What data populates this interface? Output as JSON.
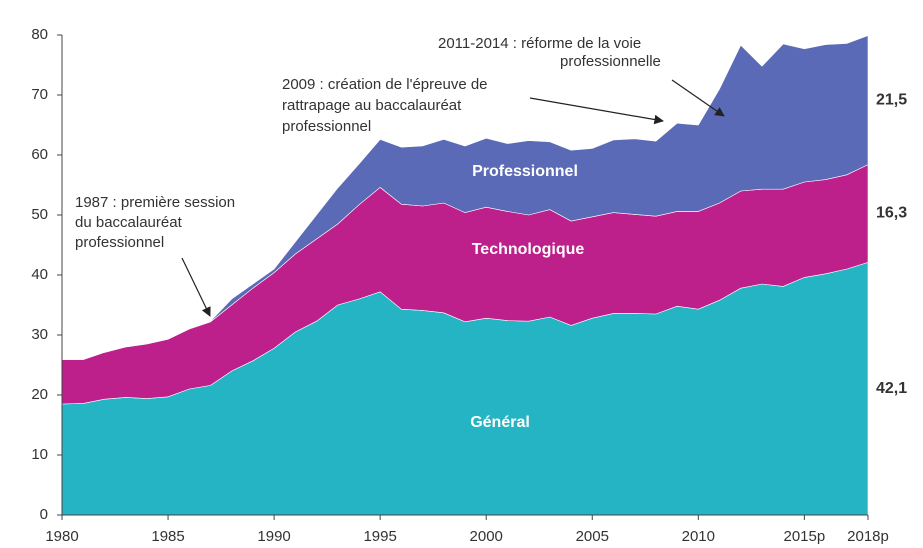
{
  "chart_data": {
    "type": "stacked_area",
    "x": [
      1980,
      1981,
      1982,
      1983,
      1984,
      1985,
      1986,
      1987,
      1988,
      1989,
      1990,
      1991,
      1992,
      1993,
      1994,
      1995,
      1996,
      1997,
      1998,
      1999,
      2000,
      2001,
      2002,
      2003,
      2004,
      2005,
      2006,
      2007,
      2008,
      2009,
      2010,
      2011,
      2012,
      2013,
      2014,
      2015,
      2016,
      2017,
      2018
    ],
    "xlim": [
      1980,
      2018
    ],
    "xticks": [
      1980,
      1985,
      1990,
      1995,
      2000,
      2005,
      2010,
      {
        "value": 2015,
        "label": "2015p"
      },
      {
        "value": 2018,
        "label": "2018p"
      }
    ],
    "ylim": [
      0,
      80
    ],
    "yticks": [
      0,
      10,
      20,
      30,
      40,
      50,
      60,
      70,
      80
    ],
    "grid": false,
    "series": [
      {
        "name": "Général",
        "color": "#25b4c3",
        "values": [
          18.5,
          18.6,
          19.3,
          19.6,
          19.4,
          19.7,
          21.0,
          21.6,
          24.0,
          25.7,
          27.8,
          30.5,
          32.3,
          35.0,
          36.0,
          37.2,
          34.3,
          34.1,
          33.7,
          32.2,
          32.8,
          32.4,
          32.3,
          33.0,
          31.6,
          32.8,
          33.6,
          33.6,
          33.5,
          34.8,
          34.3,
          35.8,
          37.8,
          38.5,
          38.1,
          39.6,
          40.2,
          41.0,
          42.1
        ],
        "value_labels": [
          null,
          null,
          null,
          null,
          null,
          null,
          null,
          null,
          null,
          null,
          null,
          null,
          null,
          null,
          null,
          null,
          null,
          null,
          null,
          null,
          null,
          null,
          null,
          null,
          null,
          null,
          null,
          null,
          null,
          null,
          null,
          null,
          null,
          null,
          null,
          null,
          null,
          null,
          "42,1"
        ]
      },
      {
        "name": "Technologique",
        "color": "#bd1f8b",
        "values": [
          7.4,
          7.3,
          7.8,
          8.4,
          9.1,
          9.6,
          10.0,
          10.6,
          11.0,
          12.1,
          12.6,
          13.0,
          13.7,
          13.5,
          15.7,
          17.4,
          17.5,
          17.4,
          18.3,
          18.2,
          18.5,
          18.2,
          17.7,
          17.9,
          17.4,
          16.9,
          16.8,
          16.5,
          16.3,
          15.8,
          16.3,
          16.2,
          16.2,
          15.8,
          16.2,
          15.9,
          15.7,
          15.7,
          16.3
        ],
        "value_labels": [
          null,
          null,
          null,
          null,
          null,
          null,
          null,
          null,
          null,
          null,
          null,
          null,
          null,
          null,
          null,
          null,
          null,
          null,
          null,
          null,
          null,
          null,
          null,
          null,
          null,
          null,
          null,
          null,
          null,
          null,
          null,
          null,
          null,
          null,
          null,
          null,
          null,
          null,
          "16,3"
        ]
      },
      {
        "name": "Professionnel",
        "color": "#5a6ab6",
        "values": [
          0,
          0,
          0,
          0,
          0,
          0,
          0,
          0.1,
          1.0,
          0.7,
          0.6,
          2.0,
          4.0,
          6.0,
          6.8,
          8.0,
          9.5,
          10.0,
          10.6,
          11.1,
          11.5,
          11.3,
          12.4,
          11.3,
          11.8,
          11.4,
          12.1,
          12.6,
          12.5,
          14.7,
          14.4,
          19.0,
          24.3,
          20.5,
          24.2,
          22.2,
          22.5,
          21.9,
          21.5
        ],
        "value_labels": [
          null,
          null,
          null,
          null,
          null,
          null,
          null,
          null,
          null,
          null,
          null,
          null,
          null,
          null,
          null,
          null,
          null,
          null,
          null,
          null,
          null,
          null,
          null,
          null,
          null,
          null,
          null,
          null,
          null,
          null,
          null,
          null,
          null,
          null,
          null,
          null,
          null,
          null,
          "21,5"
        ]
      }
    ],
    "annotations": [
      {
        "lines": [
          "1987 : première session",
          "du baccalauréat",
          "professionnel"
        ]
      },
      {
        "lines": [
          "2009 : création de l'épreuve de",
          "rattrapage au baccalauréat",
          "professionnel"
        ]
      },
      {
        "lines": [
          "2011-2014 : réforme de la voie",
          "professionnelle"
        ]
      }
    ]
  }
}
